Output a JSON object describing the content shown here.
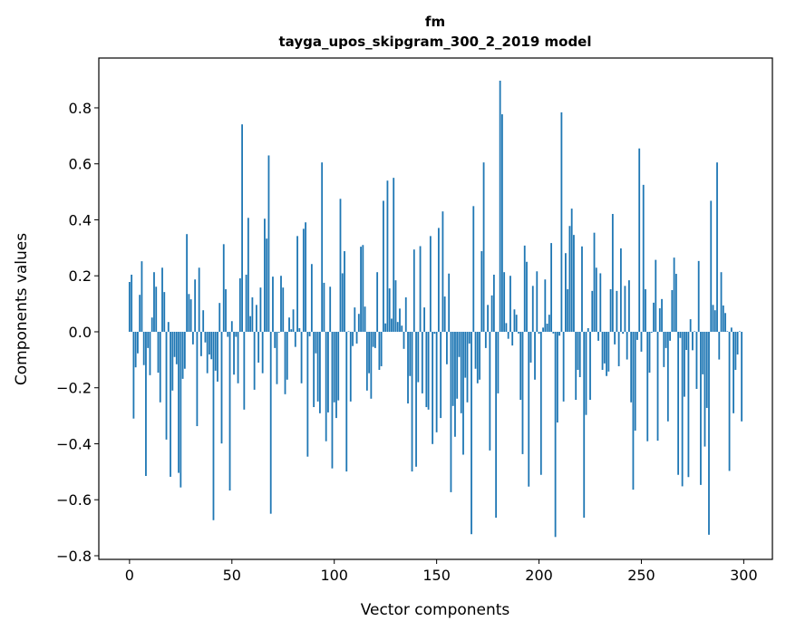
{
  "chart_data": {
    "type": "bar",
    "title": "fm",
    "subtitle": "tayga_upos_skipgram_300_2_2019 model",
    "xlabel": "Vector components",
    "ylabel": "Components values",
    "xlim": [
      -15,
      314
    ],
    "ylim": [
      -0.813,
      0.978
    ],
    "grid": false,
    "bar_color": "#1f77b4",
    "x_ticks": [
      0,
      50,
      100,
      150,
      200,
      250,
      300
    ],
    "x_tick_labels": [
      "0",
      "50",
      "100",
      "150",
      "200",
      "250",
      "300"
    ],
    "y_ticks": [
      -0.8,
      -0.6,
      -0.4,
      -0.2,
      0.0,
      0.2,
      0.4,
      0.6,
      0.8
    ],
    "y_tick_labels": [
      "−0.8",
      "−0.6",
      "−0.4",
      "−0.2",
      "0.0",
      "0.2",
      "0.4",
      "0.6",
      "0.8"
    ],
    "values": [
      0.178,
      0.204,
      -0.31,
      -0.127,
      -0.077,
      0.132,
      0.252,
      -0.119,
      -0.515,
      -0.058,
      -0.155,
      0.051,
      0.213,
      0.161,
      -0.146,
      -0.252,
      0.229,
      0.142,
      -0.385,
      0.035,
      -0.518,
      -0.21,
      -0.09,
      -0.116,
      -0.504,
      -0.556,
      -0.168,
      -0.132,
      0.349,
      0.135,
      0.116,
      -0.045,
      0.187,
      -0.337,
      0.229,
      -0.087,
      0.077,
      -0.038,
      -0.148,
      -0.081,
      -0.098,
      -0.673,
      -0.139,
      -0.178,
      0.103,
      -0.399,
      0.313,
      0.152,
      -0.018,
      -0.567,
      0.038,
      -0.153,
      -0.018,
      -0.184,
      0.191,
      0.741,
      -0.278,
      0.204,
      0.407,
      0.056,
      0.123,
      -0.207,
      0.096,
      -0.11,
      0.158,
      -0.148,
      0.404,
      0.333,
      0.63,
      -0.65,
      0.197,
      -0.058,
      -0.187,
      -0.003,
      0.2,
      0.158,
      -0.223,
      -0.171,
      0.051,
      0.009,
      0.08,
      -0.054,
      0.342,
      0.013,
      -0.184,
      0.368,
      0.391,
      -0.446,
      -0.016,
      0.242,
      -0.269,
      -0.077,
      -0.249,
      -0.291,
      0.605,
      0.175,
      -0.391,
      -0.288,
      0.161,
      -0.488,
      -0.252,
      -0.308,
      -0.245,
      0.475,
      0.209,
      0.288,
      -0.499,
      0.002,
      -0.249,
      -0.051,
      0.087,
      -0.042,
      0.064,
      0.304,
      0.31,
      0.09,
      -0.21,
      -0.148,
      -0.239,
      -0.054,
      -0.058,
      0.213,
      -0.136,
      -0.123,
      0.468,
      0.03,
      0.54,
      0.155,
      0.047,
      0.55,
      0.184,
      0.035,
      0.083,
      0.022,
      -0.061,
      0.123,
      -0.256,
      -0.158,
      -0.499,
      0.294,
      -0.482,
      -0.18,
      0.306,
      -0.22,
      0.087,
      -0.269,
      -0.278,
      0.342,
      -0.401,
      -0.007,
      -0.359,
      0.371,
      -0.308,
      0.43,
      0.126,
      -0.116,
      0.208,
      -0.573,
      -0.265,
      -0.375,
      -0.239,
      -0.09,
      -0.291,
      -0.439,
      -0.164,
      -0.252,
      -0.042,
      -0.723,
      0.449,
      -0.132,
      -0.184,
      -0.171,
      0.288,
      0.605,
      -0.058,
      0.096,
      -0.424,
      0.13,
      0.204,
      -0.664,
      -0.22,
      0.897,
      0.777,
      0.213,
      0.031,
      -0.025,
      0.2,
      -0.049,
      0.08,
      0.061,
      -0.006,
      -0.243,
      -0.437,
      0.308,
      0.25,
      -0.553,
      -0.11,
      0.164,
      -0.171,
      0.216,
      -0.007,
      -0.511,
      0.015,
      0.187,
      0.029,
      0.061,
      0.317,
      -0.006,
      -0.733,
      -0.324,
      -0.014,
      0.784,
      -0.249,
      0.281,
      0.152,
      0.378,
      0.44,
      0.346,
      -0.243,
      -0.136,
      -0.162,
      0.305,
      -0.664,
      -0.297,
      0.013,
      -0.243,
      0.146,
      0.354,
      0.229,
      -0.032,
      0.209,
      -0.136,
      -0.113,
      -0.158,
      -0.142,
      0.152,
      0.421,
      -0.045,
      0.146,
      -0.123,
      0.298,
      -0.007,
      0.164,
      -0.099,
      0.184,
      -0.252,
      -0.564,
      -0.353,
      -0.029,
      0.655,
      -0.071,
      0.525,
      0.152,
      -0.391,
      -0.146,
      -0.003,
      0.104,
      0.257,
      -0.389,
      0.084,
      0.117,
      -0.126,
      -0.058,
      -0.32,
      -0.032,
      0.149,
      0.265,
      0.207,
      -0.511,
      -0.022,
      -0.552,
      -0.232,
      -0.065,
      -0.519,
      0.045,
      -0.066,
      0.002,
      -0.204,
      0.253,
      -0.547,
      -0.152,
      -0.41,
      -0.272,
      -0.725,
      0.468,
      0.096,
      0.077,
      0.605,
      -0.099,
      0.213,
      0.094,
      0.067,
      0.002,
      -0.497,
      0.015,
      -0.291,
      -0.136,
      -0.081,
      0.002,
      -0.32
    ]
  }
}
